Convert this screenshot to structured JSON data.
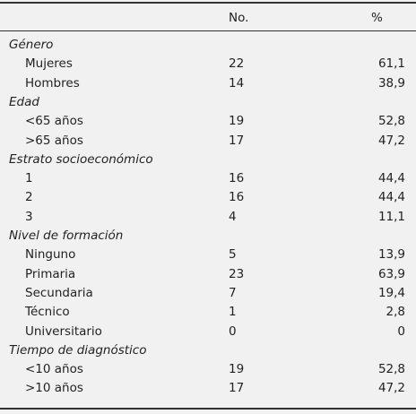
{
  "header": {
    "no": "No.",
    "pct": "%"
  },
  "groups": [
    {
      "title": "Género",
      "rows": [
        {
          "label": "Mujeres",
          "no": "22",
          "pct": "61,1"
        },
        {
          "label": "Hombres",
          "no": "14",
          "pct": "38,9"
        }
      ]
    },
    {
      "title": "Edad",
      "rows": [
        {
          "label": "<65 años",
          "no": "19",
          "pct": "52,8"
        },
        {
          "label": ">65 años",
          "no": "17",
          "pct": "47,2"
        }
      ]
    },
    {
      "title": "Estrato socioeconómico",
      "rows": [
        {
          "label": "1",
          "no": "16",
          "pct": "44,4"
        },
        {
          "label": "2",
          "no": "16",
          "pct": "44,4"
        },
        {
          "label": "3",
          "no": "4",
          "pct": "11,1"
        }
      ]
    },
    {
      "title": "Nivel de formación",
      "rows": [
        {
          "label": "Ninguno",
          "no": "5",
          "pct": "13,9"
        },
        {
          "label": "Primaria",
          "no": "23",
          "pct": "63,9"
        },
        {
          "label": "Secundaria",
          "no": "7",
          "pct": "19,4"
        },
        {
          "label": "Técnico",
          "no": "1",
          "pct": "2,8"
        },
        {
          "label": "Universitario",
          "no": "0",
          "pct": "0"
        }
      ]
    },
    {
      "title": "Tiempo de diagnóstico",
      "rows": [
        {
          "label": "<10 años",
          "no": "19",
          "pct": "52,8"
        },
        {
          "label": ">10 años",
          "no": "17",
          "pct": "47,2"
        }
      ]
    }
  ]
}
